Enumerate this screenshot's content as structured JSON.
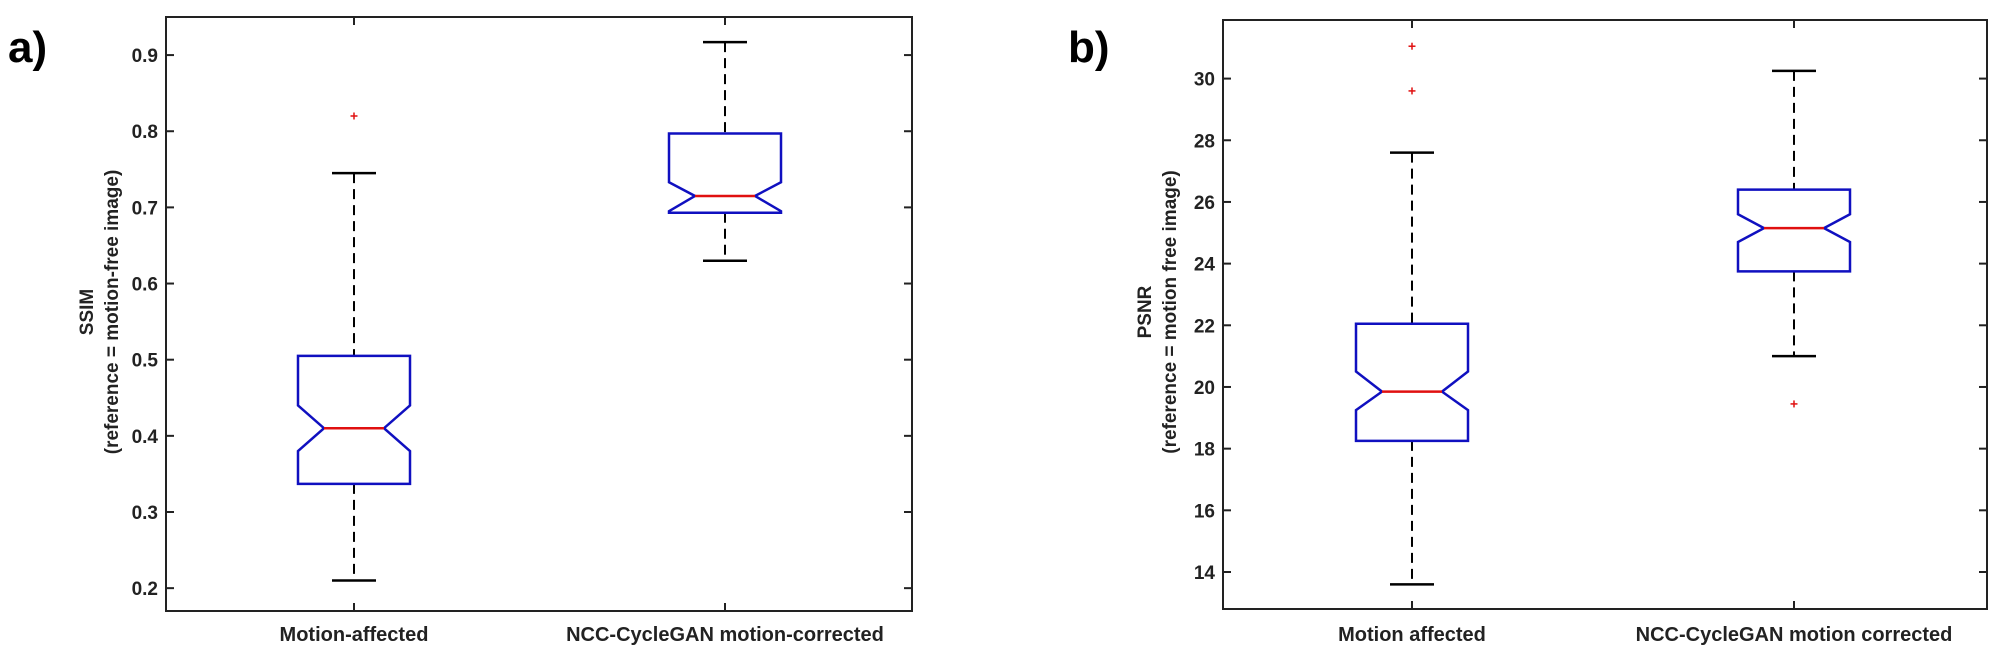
{
  "chart_data": [
    {
      "type": "boxplot",
      "panel_label": "a)",
      "ylabel_lines": [
        "SSIM",
        "(reference  = motion-free image)"
      ],
      "ylim": [
        0.17,
        0.95
      ],
      "yticks": [
        0.2,
        0.3,
        0.4,
        0.5,
        0.6,
        0.7,
        0.8,
        0.9
      ],
      "tick_labels": [
        "0.2",
        "0.3",
        "0.4",
        "0.5",
        "0.6",
        "0.7",
        "0.8",
        "0.9"
      ],
      "categories": [
        "Motion-affected",
        "NCC-CycleGAN motion-corrected"
      ],
      "boxes": [
        {
          "whisker_low": 0.21,
          "q1": 0.337,
          "notch_low": 0.38,
          "median": 0.41,
          "notch_high": 0.44,
          "q3": 0.505,
          "whisker_high": 0.745,
          "outliers": [
            0.82
          ]
        },
        {
          "whisker_low": 0.63,
          "q1": 0.693,
          "notch_low": 0.695,
          "median": 0.715,
          "notch_high": 0.733,
          "q3": 0.797,
          "whisker_high": 0.917,
          "outliers": []
        }
      ],
      "colors": {
        "box": "#1010c0",
        "median": "#e01010",
        "outlier": "#e01010",
        "whisker": "#000000"
      }
    },
    {
      "type": "boxplot",
      "panel_label": "b)",
      "ylabel_lines": [
        "PSNR",
        "(reference = motion free image)"
      ],
      "ylim": [
        12.8,
        31.9
      ],
      "yticks": [
        14,
        16,
        18,
        20,
        22,
        24,
        26,
        28,
        30
      ],
      "tick_labels": [
        "14",
        "16",
        "18",
        "20",
        "22",
        "24",
        "26",
        "28",
        "30"
      ],
      "categories": [
        "Motion affected",
        "NCC-CycleGAN motion corrected"
      ],
      "boxes": [
        {
          "whisker_low": 13.6,
          "q1": 18.25,
          "notch_low": 19.25,
          "median": 19.85,
          "notch_high": 20.5,
          "q3": 22.05,
          "whisker_high": 27.6,
          "outliers": [
            29.6,
            31.05
          ]
        },
        {
          "whisker_low": 21.0,
          "q1": 23.75,
          "notch_low": 24.7,
          "median": 25.15,
          "notch_high": 25.6,
          "q3": 26.4,
          "whisker_high": 30.25,
          "outliers": [
            19.45
          ]
        }
      ],
      "colors": {
        "box": "#1010c0",
        "median": "#e01010",
        "outlier": "#e01010",
        "whisker": "#000000"
      }
    }
  ]
}
